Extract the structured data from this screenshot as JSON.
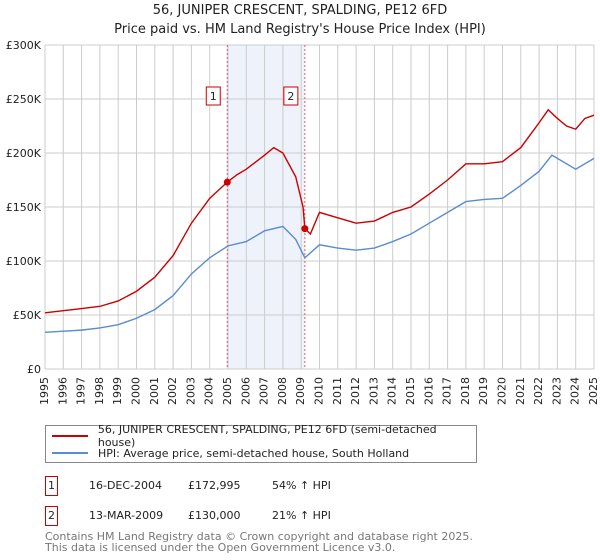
{
  "title": "56, JUNIPER CRESCENT, SPALDING, PE12 6FD",
  "subtitle": "Price paid vs. HM Land Registry's House Price Index (HPI)",
  "chart_data": {
    "type": "line",
    "xlim": [
      1995,
      2025
    ],
    "ylim": [
      0,
      300000
    ],
    "y_ticks": [
      {
        "v": 0,
        "label": "£0"
      },
      {
        "v": 50000,
        "label": "£50K"
      },
      {
        "v": 100000,
        "label": "£100K"
      },
      {
        "v": 150000,
        "label": "£150K"
      },
      {
        "v": 200000,
        "label": "£200K"
      },
      {
        "v": 250000,
        "label": "£250K"
      },
      {
        "v": 300000,
        "label": "£300K"
      }
    ],
    "x_ticks": [
      "1995",
      "1996",
      "1997",
      "1998",
      "1999",
      "2000",
      "2001",
      "2002",
      "2003",
      "2004",
      "2005",
      "2006",
      "2007",
      "2008",
      "2009",
      "2010",
      "2011",
      "2012",
      "2013",
      "2014",
      "2015",
      "2016",
      "2017",
      "2018",
      "2019",
      "2020",
      "2021",
      "2022",
      "2023",
      "2024",
      "2025"
    ],
    "grid": true,
    "shaded_range": [
      2004.96,
      2009.2
    ],
    "series": [
      {
        "name": "56, JUNIPER CRESCENT, SPALDING, PE12 6FD (semi-detached house)",
        "color": "#cc0000",
        "x": [
          1995,
          1996,
          1997,
          1998,
          1999,
          2000,
          2001,
          2002,
          2003,
          2004,
          2004.96,
          2005.5,
          2006,
          2007,
          2007.5,
          2008,
          2008.7,
          2009.1,
          2009.2,
          2009.5,
          2010,
          2011,
          2012,
          2013,
          2014,
          2015,
          2016,
          2017,
          2018,
          2019,
          2020,
          2021,
          2022,
          2022.5,
          2023,
          2023.5,
          2024,
          2024.5,
          2025
        ],
        "y": [
          52000,
          54000,
          56000,
          58000,
          63000,
          72000,
          85000,
          105000,
          135000,
          158000,
          172995,
          180000,
          185000,
          198000,
          205000,
          200000,
          178000,
          150000,
          130000,
          125000,
          145000,
          140000,
          135000,
          137000,
          145000,
          150000,
          162000,
          175000,
          190000,
          190000,
          192000,
          205000,
          228000,
          240000,
          232000,
          225000,
          222000,
          232000,
          235000
        ]
      },
      {
        "name": "HPI: Average price, semi-detached house, South Holland",
        "color": "#5b8bd0",
        "x": [
          1995,
          1996,
          1997,
          1998,
          1999,
          2000,
          2001,
          2002,
          2003,
          2004,
          2005,
          2006,
          2007,
          2008,
          2008.7,
          2009.2,
          2010,
          2011,
          2012,
          2013,
          2014,
          2015,
          2016,
          2017,
          2018,
          2019,
          2020,
          2021,
          2022,
          2022.7,
          2023,
          2024,
          2025
        ],
        "y": [
          34000,
          35000,
          36000,
          38000,
          41000,
          47000,
          55000,
          68000,
          88000,
          103000,
          114000,
          118000,
          128000,
          132000,
          120000,
          103000,
          115000,
          112000,
          110000,
          112000,
          118000,
          125000,
          135000,
          145000,
          155000,
          157000,
          158000,
          170000,
          183000,
          198000,
          195000,
          185000,
          195000
        ]
      }
    ],
    "markers": [
      {
        "label": "1",
        "x": 2004.96,
        "y": 172995
      },
      {
        "label": "2",
        "x": 2009.2,
        "y": 130000
      }
    ],
    "legend": "bottom"
  },
  "sales": [
    {
      "num": "1",
      "date": "16-DEC-2004",
      "price": "£172,995",
      "hpi": "54% ↑ HPI"
    },
    {
      "num": "2",
      "date": "13-MAR-2009",
      "price": "£130,000",
      "hpi": "21% ↑ HPI"
    }
  ],
  "footer": [
    "Contains HM Land Registry data © Crown copyright and database right 2025.",
    "This data is licensed under the Open Government Licence v3.0."
  ]
}
